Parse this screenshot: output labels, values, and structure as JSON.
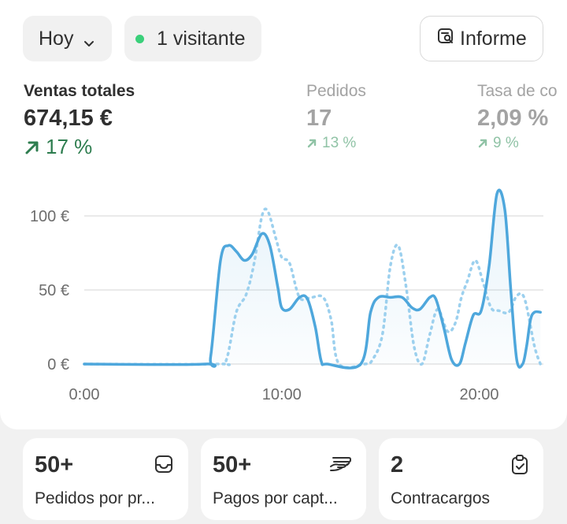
{
  "toolbar": {
    "date_label": "Hoy",
    "visitors_label": "1 visitante",
    "report_label": "Informe"
  },
  "metrics": [
    {
      "label": "Ventas totales",
      "value": "674,15 €",
      "change": "17 %"
    },
    {
      "label": "Pedidos",
      "value": "17",
      "change": "13 %"
    },
    {
      "label": "Tasa de co",
      "value": "2,09 %",
      "change": "9 %"
    }
  ],
  "chart_data": {
    "type": "line",
    "y_tick_labels": [
      "100 €",
      "50 €",
      "0 €"
    ],
    "x_tick_labels": [
      "0:00",
      "10:00",
      "20:00"
    ],
    "ylim": [
      0,
      125
    ],
    "xlim": [
      0,
      23.25
    ],
    "grid": true,
    "colors": {
      "current": "#4ea7dc",
      "comparison": "#9cd0ee"
    },
    "series": [
      {
        "style": "solid",
        "points": [
          [
            0,
            0
          ],
          [
            6.1,
            0
          ],
          [
            6.4,
            5
          ],
          [
            6.9,
            70
          ],
          [
            7.3,
            80
          ],
          [
            7.7,
            76
          ],
          [
            8.1,
            70
          ],
          [
            8.5,
            74
          ],
          [
            9.0,
            88
          ],
          [
            9.4,
            80
          ],
          [
            9.8,
            52
          ],
          [
            10.0,
            38
          ],
          [
            10.4,
            37
          ],
          [
            10.9,
            45
          ],
          [
            11.3,
            44
          ],
          [
            11.7,
            25
          ],
          [
            12.0,
            2
          ],
          [
            12.3,
            0
          ],
          [
            14.0,
            0
          ],
          [
            14.5,
            35
          ],
          [
            14.9,
            45
          ],
          [
            15.5,
            45
          ],
          [
            16.1,
            45
          ],
          [
            16.6,
            38
          ],
          [
            17.0,
            37
          ],
          [
            17.5,
            45
          ],
          [
            17.8,
            44
          ],
          [
            18.2,
            25
          ],
          [
            18.6,
            3
          ],
          [
            19.0,
            0
          ],
          [
            19.3,
            14
          ],
          [
            19.7,
            33
          ],
          [
            20.1,
            36
          ],
          [
            20.5,
            66
          ],
          [
            20.9,
            115
          ],
          [
            21.3,
            104
          ],
          [
            21.6,
            50
          ],
          [
            21.9,
            3
          ],
          [
            22.2,
            0
          ],
          [
            22.4,
            12
          ],
          [
            22.6,
            30
          ],
          [
            22.8,
            35
          ],
          [
            23.1,
            35
          ]
        ]
      },
      {
        "style": "dotted",
        "points": [
          [
            0,
            0
          ],
          [
            6.7,
            0
          ],
          [
            7.2,
            3
          ],
          [
            7.7,
            35
          ],
          [
            8.2,
            47
          ],
          [
            8.6,
            68
          ],
          [
            9.0,
            100
          ],
          [
            9.3,
            103
          ],
          [
            9.7,
            85
          ],
          [
            10.0,
            72
          ],
          [
            10.4,
            68
          ],
          [
            10.9,
            45
          ],
          [
            11.5,
            45
          ],
          [
            12.1,
            45
          ],
          [
            12.5,
            30
          ],
          [
            12.9,
            0
          ],
          [
            14.2,
            0
          ],
          [
            14.6,
            3
          ],
          [
            15.1,
            20
          ],
          [
            15.5,
            66
          ],
          [
            15.9,
            80
          ],
          [
            16.3,
            52
          ],
          [
            16.7,
            12
          ],
          [
            17.1,
            0
          ],
          [
            17.5,
            20
          ],
          [
            17.9,
            37
          ],
          [
            18.4,
            22
          ],
          [
            18.8,
            28
          ],
          [
            19.1,
            45
          ],
          [
            19.4,
            56
          ],
          [
            19.8,
            70
          ],
          [
            20.2,
            55
          ],
          [
            20.6,
            38
          ],
          [
            21.0,
            36
          ],
          [
            21.5,
            35
          ],
          [
            21.9,
            46
          ],
          [
            22.3,
            44
          ],
          [
            22.8,
            12
          ],
          [
            23.1,
            0
          ]
        ]
      }
    ]
  },
  "tiles": [
    {
      "value": "50+",
      "label": "Pedidos por pr...",
      "icon": "inbox-icon"
    },
    {
      "value": "50+",
      "label": "Pagos por capt...",
      "icon": "card-hand-icon"
    },
    {
      "value": "2",
      "label": "Contracargos",
      "icon": "clipboard-check-icon"
    }
  ]
}
